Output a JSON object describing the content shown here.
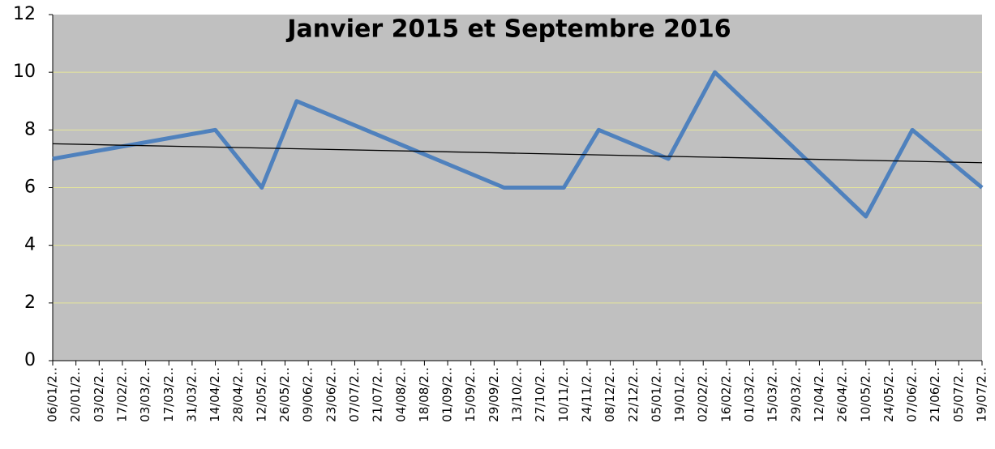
{
  "chart_data": {
    "type": "line",
    "title": "Janvier 2015 et Septembre 2016",
    "x": [
      "2015-01-06",
      "2015-04-14",
      "2015-05-12",
      "2015-06-02",
      "2015-10-05",
      "2015-11-10",
      "2015-12-01",
      "2016-01-12",
      "2016-02-09",
      "2016-05-10",
      "2016-06-07",
      "2016-07-19"
    ],
    "series": [
      {
        "color": "#4f81bd",
        "values": [
          7,
          8,
          6,
          9,
          6,
          6,
          8,
          7,
          10,
          5,
          8,
          6
        ]
      }
    ],
    "trendline": true,
    "trendline_color": "#000000",
    "xlim": [
      "2015-01-06",
      "2016-07-19"
    ],
    "xticks": [
      {
        "value": "2015-01-06",
        "label": "06/01/2‥"
      },
      {
        "value": "2015-01-20",
        "label": "20/01/2‥"
      },
      {
        "value": "2015-02-03",
        "label": "03/02/2‥"
      },
      {
        "value": "2015-02-17",
        "label": "17/02/2‥"
      },
      {
        "value": "2015-03-03",
        "label": "03/03/2‥"
      },
      {
        "value": "2015-03-17",
        "label": "17/03/2‥"
      },
      {
        "value": "2015-03-31",
        "label": "31/03/2‥"
      },
      {
        "value": "2015-04-14",
        "label": "14/04/2‥"
      },
      {
        "value": "2015-04-28",
        "label": "28/04/2‥"
      },
      {
        "value": "2015-05-12",
        "label": "12/05/2‥"
      },
      {
        "value": "2015-05-26",
        "label": "26/05/2‥"
      },
      {
        "value": "2015-06-09",
        "label": "09/06/2‥"
      },
      {
        "value": "2015-06-23",
        "label": "23/06/2‥"
      },
      {
        "value": "2015-07-07",
        "label": "07/07/2‥"
      },
      {
        "value": "2015-07-21",
        "label": "21/07/2‥"
      },
      {
        "value": "2015-08-04",
        "label": "04/08/2‥"
      },
      {
        "value": "2015-08-18",
        "label": "18/08/2‥"
      },
      {
        "value": "2015-09-01",
        "label": "01/09/2‥"
      },
      {
        "value": "2015-09-15",
        "label": "15/09/2‥"
      },
      {
        "value": "2015-09-29",
        "label": "29/09/2‥"
      },
      {
        "value": "2015-10-13",
        "label": "13/10/2‥"
      },
      {
        "value": "2015-10-27",
        "label": "27/10/2‥"
      },
      {
        "value": "2015-11-10",
        "label": "10/11/2‥"
      },
      {
        "value": "2015-11-24",
        "label": "24/11/2‥"
      },
      {
        "value": "2015-12-08",
        "label": "08/12/2‥"
      },
      {
        "value": "2015-12-22",
        "label": "22/12/2‥"
      },
      {
        "value": "2016-01-05",
        "label": "05/01/2‥"
      },
      {
        "value": "2016-01-19",
        "label": "19/01/2‥"
      },
      {
        "value": "2016-02-02",
        "label": "02/02/2‥"
      },
      {
        "value": "2016-02-16",
        "label": "16/02/2‥"
      },
      {
        "value": "2016-03-01",
        "label": "01/03/2‥"
      },
      {
        "value": "2016-03-15",
        "label": "15/03/2‥"
      },
      {
        "value": "2016-03-29",
        "label": "29/03/2‥"
      },
      {
        "value": "2016-04-12",
        "label": "12/04/2‥"
      },
      {
        "value": "2016-04-26",
        "label": "26/04/2‥"
      },
      {
        "value": "2016-05-10",
        "label": "10/05/2‥"
      },
      {
        "value": "2016-05-24",
        "label": "24/05/2‥"
      },
      {
        "value": "2016-06-07",
        "label": "07/06/2‥"
      },
      {
        "value": "2016-06-21",
        "label": "21/06/2‥"
      },
      {
        "value": "2016-07-05",
        "label": "05/07/2‥"
      },
      {
        "value": "2016-07-19",
        "label": "19/07/2‥"
      }
    ],
    "ylim": [
      0,
      12
    ],
    "yticks": [
      0,
      2,
      4,
      6,
      8,
      10,
      12
    ],
    "grid": true,
    "grid_color": "#e6e69a",
    "plot_background": "#c0c0c0"
  }
}
